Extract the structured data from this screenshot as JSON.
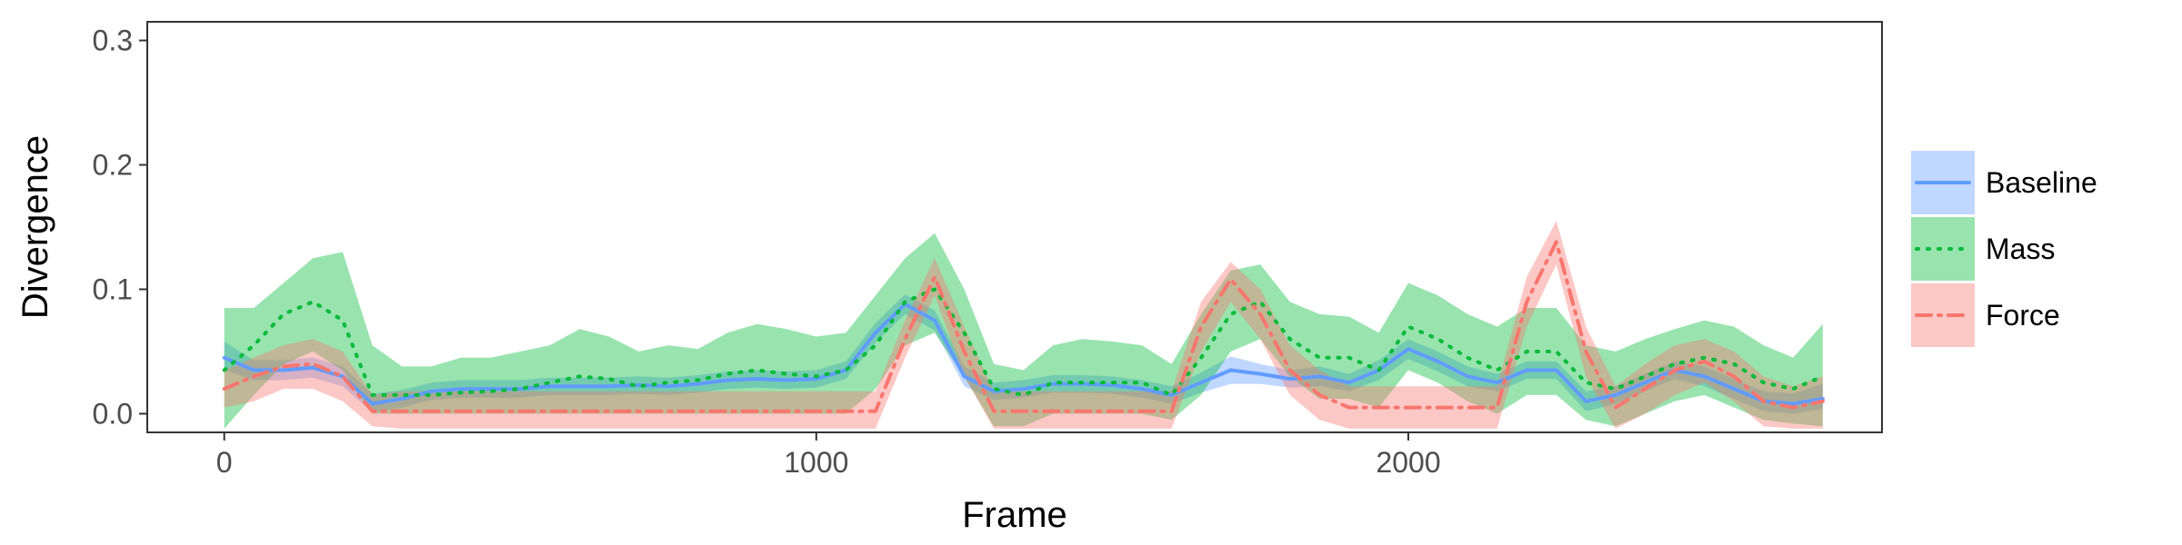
{
  "chart_data": {
    "type": "line",
    "title": "",
    "xlabel": "Frame",
    "ylabel": "Divergence",
    "xlim": [
      -130,
      2800
    ],
    "ylim": [
      -0.015,
      0.315
    ],
    "xticks": [
      0,
      1000,
      2000
    ],
    "xtick_labels": [
      "0",
      "1000",
      "2000"
    ],
    "yticks": [
      0.0,
      0.1,
      0.2,
      0.3
    ],
    "ytick_labels": [
      "0.0",
      "0.1",
      "0.2",
      "0.3"
    ],
    "grid": false,
    "legend": "right",
    "x": [
      0,
      50,
      100,
      150,
      200,
      250,
      300,
      350,
      400,
      450,
      500,
      550,
      600,
      650,
      700,
      750,
      800,
      850,
      900,
      950,
      1000,
      1050,
      1100,
      1150,
      1200,
      1250,
      1300,
      1350,
      1400,
      1450,
      1500,
      1550,
      1600,
      1650,
      1700,
      1750,
      1800,
      1850,
      1900,
      1950,
      2000,
      2050,
      2100,
      2150,
      2200,
      2250,
      2300,
      2350,
      2400,
      2450,
      2500,
      2550,
      2600,
      2650,
      2700
    ],
    "series": [
      {
        "name": "Baseline",
        "color": "#619CFF",
        "dash": "solid",
        "values": [
          0.045,
          0.035,
          0.035,
          0.037,
          0.03,
          0.008,
          0.012,
          0.018,
          0.02,
          0.02,
          0.02,
          0.022,
          0.022,
          0.022,
          0.023,
          0.022,
          0.024,
          0.027,
          0.028,
          0.027,
          0.028,
          0.035,
          0.065,
          0.088,
          0.075,
          0.03,
          0.018,
          0.02,
          0.024,
          0.024,
          0.023,
          0.02,
          0.015,
          0.025,
          0.035,
          0.032,
          0.028,
          0.03,
          0.025,
          0.035,
          0.052,
          0.042,
          0.03,
          0.025,
          0.035,
          0.035,
          0.01,
          0.015,
          0.025,
          0.035,
          0.03,
          0.02,
          0.01,
          0.008,
          0.012
        ],
        "lower": [
          0.035,
          0.027,
          0.027,
          0.029,
          0.022,
          0.001,
          0.005,
          0.011,
          0.013,
          0.013,
          0.013,
          0.015,
          0.015,
          0.015,
          0.016,
          0.015,
          0.017,
          0.02,
          0.021,
          0.02,
          0.021,
          0.028,
          0.057,
          0.08,
          0.067,
          0.022,
          0.011,
          0.013,
          0.017,
          0.017,
          0.016,
          0.013,
          0.008,
          0.017,
          0.024,
          0.024,
          0.021,
          0.022,
          0.018,
          0.027,
          0.044,
          0.034,
          0.022,
          0.018,
          0.028,
          0.028,
          0.002,
          0.008,
          0.018,
          0.028,
          0.022,
          0.012,
          0.002,
          0.0,
          0.004
        ],
        "upper": [
          0.058,
          0.043,
          0.043,
          0.045,
          0.038,
          0.016,
          0.019,
          0.025,
          0.027,
          0.027,
          0.027,
          0.029,
          0.029,
          0.029,
          0.03,
          0.029,
          0.031,
          0.034,
          0.035,
          0.034,
          0.035,
          0.042,
          0.073,
          0.096,
          0.083,
          0.038,
          0.025,
          0.027,
          0.031,
          0.031,
          0.03,
          0.027,
          0.022,
          0.033,
          0.046,
          0.04,
          0.035,
          0.038,
          0.032,
          0.043,
          0.06,
          0.05,
          0.038,
          0.032,
          0.042,
          0.042,
          0.018,
          0.022,
          0.032,
          0.042,
          0.038,
          0.028,
          0.018,
          0.016,
          0.024
        ]
      },
      {
        "name": "Mass",
        "color": "#00BA38",
        "dash": "dotted",
        "values": [
          0.035,
          0.055,
          0.08,
          0.09,
          0.075,
          0.015,
          0.015,
          0.015,
          0.017,
          0.018,
          0.02,
          0.025,
          0.03,
          0.028,
          0.022,
          0.025,
          0.027,
          0.032,
          0.035,
          0.032,
          0.03,
          0.035,
          0.055,
          0.09,
          0.1,
          0.065,
          0.02,
          0.015,
          0.025,
          0.025,
          0.025,
          0.025,
          0.015,
          0.045,
          0.08,
          0.09,
          0.06,
          0.045,
          0.045,
          0.035,
          0.07,
          0.06,
          0.045,
          0.035,
          0.05,
          0.05,
          0.025,
          0.02,
          0.03,
          0.04,
          0.045,
          0.04,
          0.025,
          0.02,
          0.03
        ],
        "lower": [
          -0.012,
          0.015,
          0.04,
          0.05,
          0.035,
          0.0,
          0.0,
          0.0,
          0.0,
          0.0,
          0.0,
          0.0,
          0.0,
          0.0,
          0.0,
          0.0,
          0.0,
          0.0,
          0.0,
          0.0,
          0.0,
          0.0,
          0.02,
          0.055,
          0.065,
          0.03,
          -0.01,
          -0.01,
          0.0,
          0.0,
          0.0,
          0.0,
          -0.005,
          0.015,
          0.05,
          0.06,
          0.03,
          0.012,
          0.012,
          0.005,
          0.035,
          0.025,
          0.01,
          0.0,
          0.015,
          0.015,
          -0.005,
          -0.01,
          0.0,
          0.01,
          0.015,
          0.005,
          -0.005,
          -0.008,
          -0.01
        ],
        "upper": [
          0.085,
          0.085,
          0.105,
          0.125,
          0.13,
          0.055,
          0.038,
          0.038,
          0.045,
          0.045,
          0.05,
          0.055,
          0.068,
          0.062,
          0.05,
          0.055,
          0.052,
          0.065,
          0.072,
          0.068,
          0.062,
          0.065,
          0.095,
          0.125,
          0.145,
          0.1,
          0.04,
          0.035,
          0.055,
          0.06,
          0.058,
          0.055,
          0.04,
          0.08,
          0.115,
          0.12,
          0.09,
          0.08,
          0.078,
          0.065,
          0.105,
          0.095,
          0.08,
          0.07,
          0.085,
          0.085,
          0.055,
          0.05,
          0.06,
          0.068,
          0.075,
          0.07,
          0.055,
          0.045,
          0.072
        ]
      },
      {
        "name": "Force",
        "color": "#F8766D",
        "dash": "dashdot",
        "values": [
          0.02,
          0.03,
          0.038,
          0.04,
          0.03,
          0.002,
          0.002,
          0.002,
          0.002,
          0.002,
          0.002,
          0.002,
          0.002,
          0.002,
          0.002,
          0.002,
          0.002,
          0.002,
          0.002,
          0.002,
          0.002,
          0.002,
          0.002,
          0.06,
          0.11,
          0.05,
          0.002,
          0.002,
          0.002,
          0.002,
          0.002,
          0.002,
          0.002,
          0.07,
          0.108,
          0.08,
          0.035,
          0.015,
          0.005,
          0.005,
          0.005,
          0.005,
          0.005,
          0.005,
          0.09,
          0.138,
          0.05,
          0.005,
          0.02,
          0.035,
          0.042,
          0.03,
          0.01,
          0.005,
          0.01
        ],
        "lower": [
          0.005,
          0.01,
          0.02,
          0.02,
          0.01,
          -0.01,
          -0.012,
          -0.012,
          -0.012,
          -0.012,
          -0.012,
          -0.012,
          -0.012,
          -0.012,
          -0.012,
          -0.012,
          -0.012,
          -0.012,
          -0.012,
          -0.012,
          -0.012,
          -0.012,
          -0.012,
          0.045,
          0.095,
          0.03,
          -0.012,
          -0.012,
          -0.012,
          -0.012,
          -0.012,
          -0.012,
          -0.012,
          0.05,
          0.09,
          0.06,
          0.015,
          -0.005,
          -0.012,
          -0.012,
          -0.012,
          -0.012,
          -0.012,
          -0.012,
          0.07,
          0.12,
          0.03,
          -0.012,
          0.0,
          0.015,
          0.025,
          0.01,
          -0.01,
          -0.012,
          -0.012
        ],
        "upper": [
          0.035,
          0.045,
          0.055,
          0.06,
          0.05,
          0.015,
          0.018,
          0.018,
          0.018,
          0.018,
          0.018,
          0.018,
          0.018,
          0.018,
          0.018,
          0.018,
          0.018,
          0.018,
          0.018,
          0.018,
          0.018,
          0.018,
          0.018,
          0.075,
          0.125,
          0.07,
          0.018,
          0.018,
          0.018,
          0.018,
          0.018,
          0.018,
          0.018,
          0.09,
          0.122,
          0.1,
          0.055,
          0.035,
          0.022,
          0.022,
          0.022,
          0.022,
          0.022,
          0.022,
          0.11,
          0.155,
          0.07,
          0.022,
          0.04,
          0.055,
          0.06,
          0.05,
          0.03,
          0.022,
          0.03
        ]
      }
    ]
  }
}
